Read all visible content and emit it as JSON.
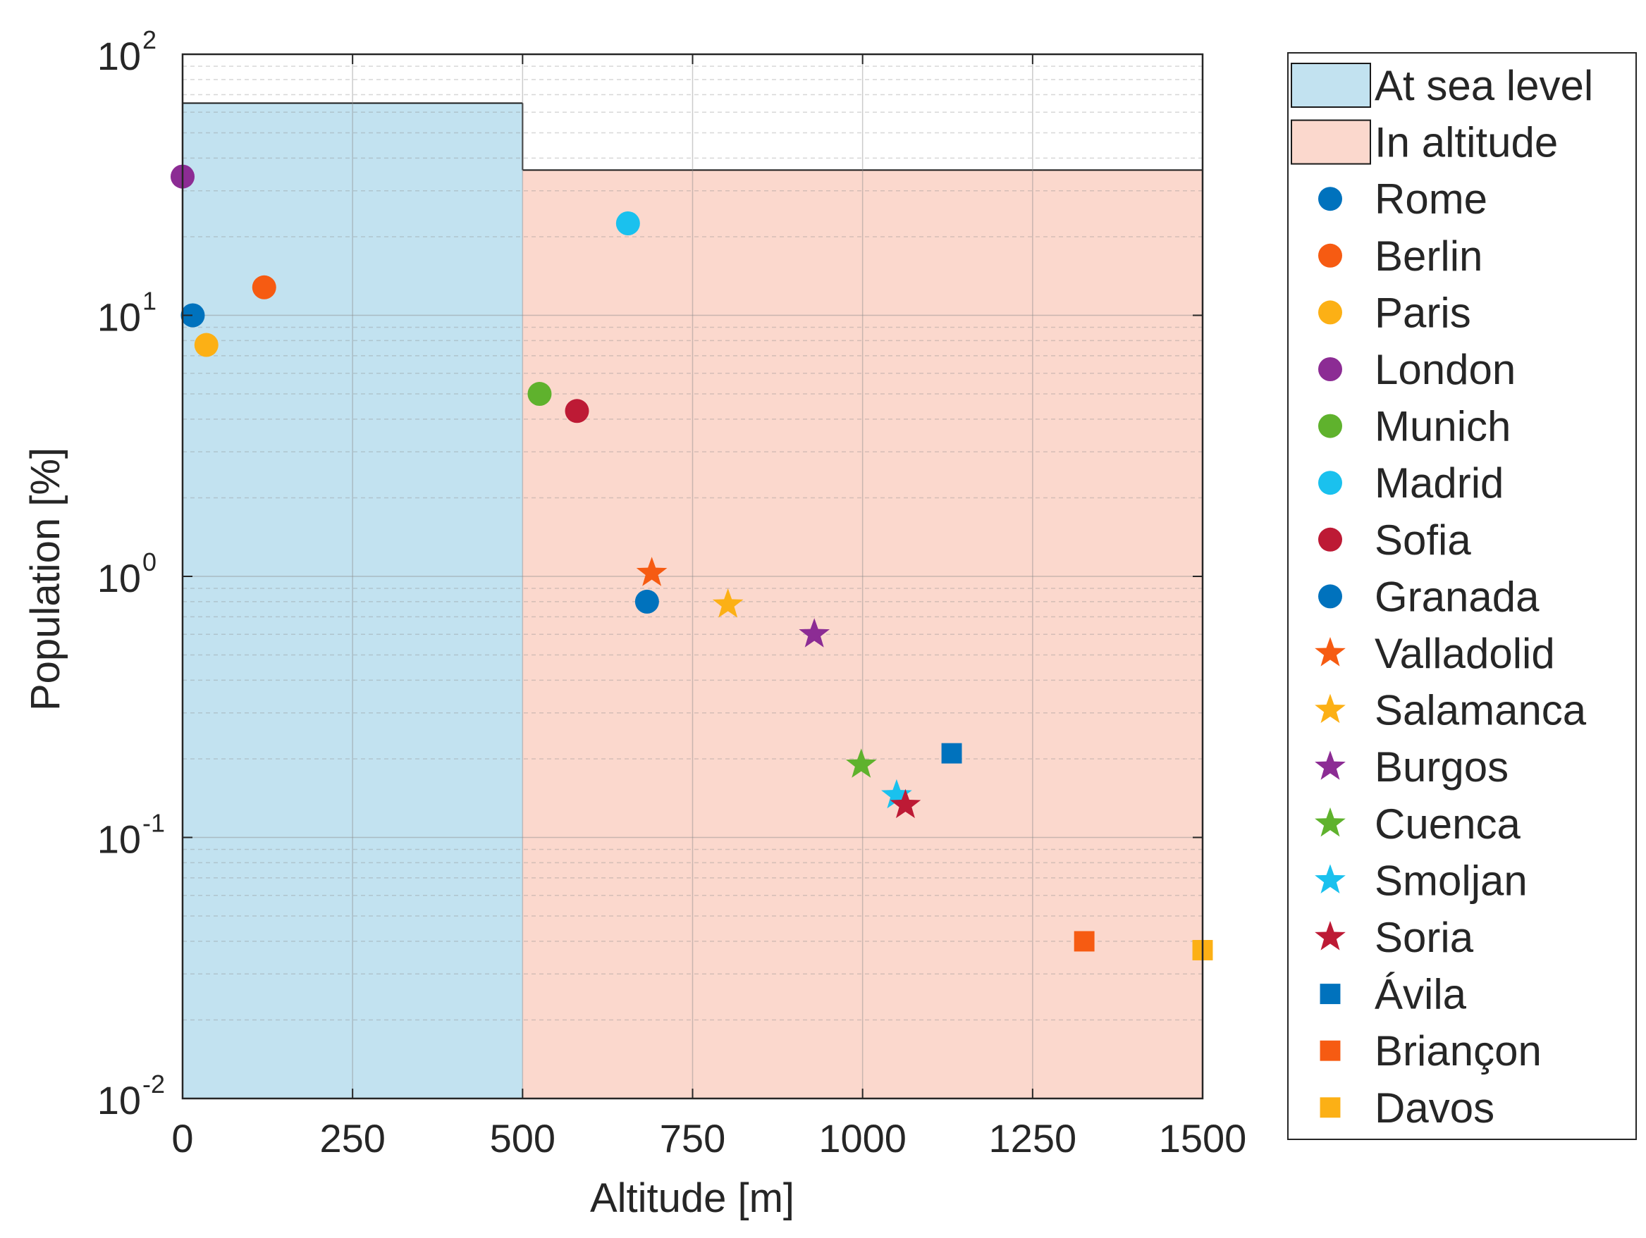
{
  "chart_data": {
    "type": "scatter",
    "xlabel": "Altitude [m]",
    "ylabel": "Population [%]",
    "xlim": [
      0,
      1500
    ],
    "ylim": [
      0.01,
      100
    ],
    "yscale": "log",
    "grid": true,
    "x_ticks": [
      {
        "value": 0,
        "label": "0"
      },
      {
        "value": 250,
        "label": "250"
      },
      {
        "value": 500,
        "label": "500"
      },
      {
        "value": 750,
        "label": "750"
      },
      {
        "value": 1000,
        "label": "1000"
      },
      {
        "value": 1250,
        "label": "1250"
      },
      {
        "value": 1500,
        "label": "1500"
      }
    ],
    "y_ticks": [
      {
        "value": 0.01,
        "base": "10",
        "exp": "-2"
      },
      {
        "value": 0.1,
        "base": "10",
        "exp": "-1"
      },
      {
        "value": 1,
        "base": "10",
        "exp": "0"
      },
      {
        "value": 10,
        "base": "10",
        "exp": "1"
      },
      {
        "value": 100,
        "base": "10",
        "exp": "2"
      }
    ],
    "regions": [
      {
        "name": "At sea level",
        "x_range": [
          0,
          500
        ],
        "top_value": 65,
        "color": "#c2e2f0"
      },
      {
        "name": "In altitude",
        "x_range": [
          500,
          1500
        ],
        "top_value": 36,
        "color": "#fbd8cd"
      }
    ],
    "series": [
      {
        "name": "Rome",
        "marker": "circle",
        "color": "#0072bd",
        "x": 15,
        "y": 10
      },
      {
        "name": "Berlin",
        "marker": "circle",
        "color": "#f65b12",
        "x": 120,
        "y": 12.8
      },
      {
        "name": "Paris",
        "marker": "circle",
        "color": "#fcb015",
        "x": 35,
        "y": 7.7
      },
      {
        "name": "London",
        "marker": "circle",
        "color": "#8c2c94",
        "x": 0,
        "y": 34
      },
      {
        "name": "Munich",
        "marker": "circle",
        "color": "#5fb22d",
        "x": 525,
        "y": 5
      },
      {
        "name": "Madrid",
        "marker": "circle",
        "color": "#1ac1ee",
        "x": 655,
        "y": 22.5
      },
      {
        "name": "Sofia",
        "marker": "circle",
        "color": "#bd1a35",
        "x": 580,
        "y": 4.3
      },
      {
        "name": "Granada",
        "marker": "circle",
        "color": "#0072bd",
        "x": 683,
        "y": 0.8
      },
      {
        "name": "Valladolid",
        "marker": "star",
        "color": "#f65b12",
        "x": 690,
        "y": 1.03
      },
      {
        "name": "Salamanca",
        "marker": "star",
        "color": "#fcb015",
        "x": 802,
        "y": 0.78
      },
      {
        "name": "Burgos",
        "marker": "star",
        "color": "#8c2c94",
        "x": 929,
        "y": 0.6
      },
      {
        "name": "Cuenca",
        "marker": "star",
        "color": "#5fb22d",
        "x": 998,
        "y": 0.19
      },
      {
        "name": "Smoljan",
        "marker": "star",
        "color": "#1ac1ee",
        "x": 1050,
        "y": 0.145
      },
      {
        "name": "Soria",
        "marker": "star",
        "color": "#bd1a35",
        "x": 1063,
        "y": 0.133
      },
      {
        "name": "Ávila",
        "marker": "square",
        "color": "#0072bd",
        "x": 1131,
        "y": 0.21
      },
      {
        "name": "Briançon",
        "marker": "square",
        "color": "#f65b12",
        "x": 1326,
        "y": 0.04
      },
      {
        "name": "Davos",
        "marker": "square",
        "color": "#fcb015",
        "x": 1500,
        "y": 0.037
      }
    ]
  }
}
